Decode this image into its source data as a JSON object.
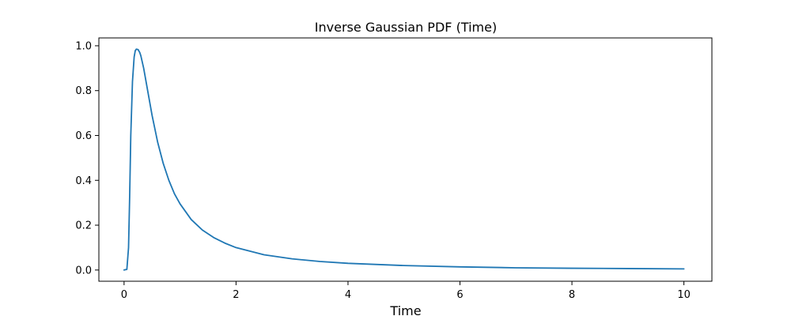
{
  "chart_data": {
    "type": "line",
    "title": "Inverse Gaussian PDF (Time)",
    "xlabel": "Time",
    "ylabel": "",
    "xlim": [
      -0.45,
      10.5
    ],
    "ylim": [
      -0.05,
      1.035
    ],
    "xticks": [
      0,
      2,
      4,
      6,
      8,
      10
    ],
    "yticks": [
      0.0,
      0.2,
      0.4,
      0.6,
      0.8,
      1.0
    ],
    "xtick_labels": [
      "0",
      "2",
      "4",
      "6",
      "8",
      "10"
    ],
    "ytick_labels": [
      "0.0",
      "0.2",
      "0.4",
      "0.6",
      "0.8",
      "1.0"
    ],
    "grid": false,
    "series": [
      {
        "color": "#1f77b4",
        "x": [
          0,
          0.05,
          0.08,
          0.1,
          0.12,
          0.15,
          0.18,
          0.2,
          0.22,
          0.25,
          0.28,
          0.3,
          0.35,
          0.4,
          0.45,
          0.5,
          0.6,
          0.7,
          0.8,
          0.9,
          1.0,
          1.2,
          1.4,
          1.6,
          1.8,
          2.0,
          2.5,
          3.0,
          3.5,
          4.0,
          5.0,
          6.0,
          7.0,
          8.0,
          9.0,
          10.0
        ],
        "y": [
          0.0,
          0.003,
          0.1,
          0.33,
          0.6,
          0.84,
          0.95,
          0.978,
          0.985,
          0.983,
          0.97,
          0.955,
          0.9,
          0.83,
          0.76,
          0.69,
          0.57,
          0.475,
          0.4,
          0.34,
          0.295,
          0.225,
          0.178,
          0.145,
          0.12,
          0.1,
          0.068,
          0.05,
          0.038,
          0.03,
          0.02,
          0.014,
          0.01,
          0.008,
          0.0065,
          0.005
        ]
      }
    ]
  }
}
